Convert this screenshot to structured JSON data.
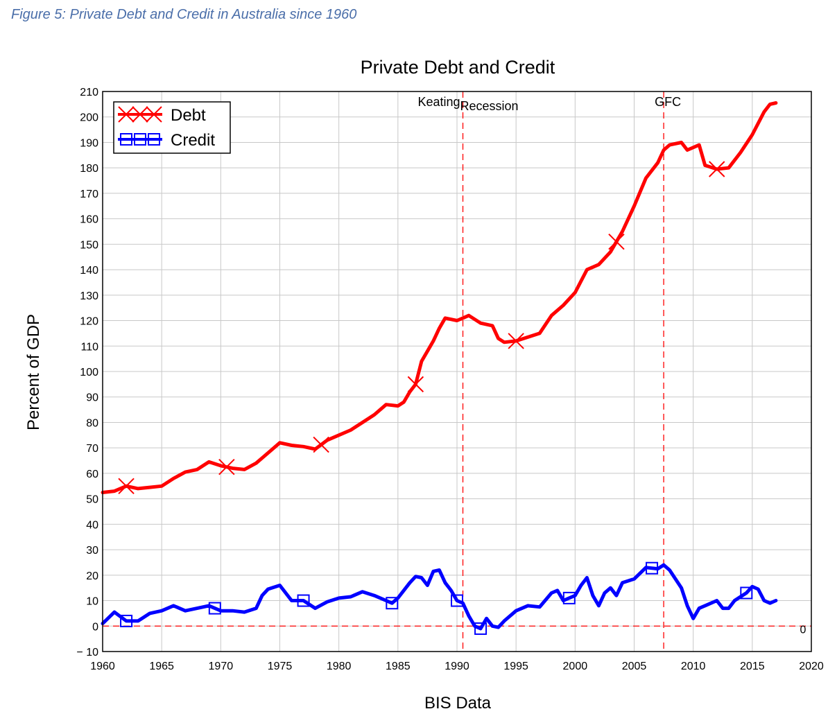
{
  "figure_caption": "Figure 5: Private Debt and Credit in Australia since 1960",
  "chart_data": {
    "type": "line",
    "title": "Private Debt and Credit",
    "xlabel": "BIS Data",
    "ylabel": "Percent of GDP",
    "xlim": [
      1960,
      2020
    ],
    "ylim": [
      -10,
      210
    ],
    "x_ticks": [
      1960,
      1965,
      1970,
      1975,
      1980,
      1985,
      1990,
      1995,
      2000,
      2005,
      2010,
      2015,
      2020
    ],
    "y_ticks": [
      -10,
      0,
      10,
      20,
      30,
      40,
      50,
      60,
      70,
      80,
      90,
      100,
      110,
      120,
      130,
      140,
      150,
      160,
      170,
      180,
      190,
      200,
      210
    ],
    "y_tick_labels": [
      "− 10",
      "0",
      "10",
      "20",
      "30",
      "40",
      "50",
      "60",
      "70",
      "80",
      "90",
      "100",
      "110",
      "120",
      "130",
      "140",
      "150",
      "160",
      "170",
      "180",
      "190",
      "200",
      "210"
    ],
    "grid": true,
    "legend_position": "top-left",
    "series": [
      {
        "name": "Debt",
        "color": "#ff0000",
        "marker": "x",
        "markers_at": [
          1962,
          1970.5,
          1978.5,
          1986.5,
          1995,
          2003.5,
          2012
        ],
        "points": [
          [
            1960,
            52.5
          ],
          [
            1961,
            53
          ],
          [
            1962,
            55
          ],
          [
            1963,
            54
          ],
          [
            1964,
            54.5
          ],
          [
            1965,
            55
          ],
          [
            1966,
            58
          ],
          [
            1967,
            60.5
          ],
          [
            1968,
            61.5
          ],
          [
            1969,
            64.5
          ],
          [
            1970,
            63
          ],
          [
            1971,
            62
          ],
          [
            1972,
            61.5
          ],
          [
            1973,
            64
          ],
          [
            1974,
            68
          ],
          [
            1975,
            72
          ],
          [
            1976,
            71
          ],
          [
            1977,
            70.5
          ],
          [
            1978,
            69.5
          ],
          [
            1979,
            73
          ],
          [
            1980,
            75
          ],
          [
            1981,
            77
          ],
          [
            1982,
            80
          ],
          [
            1983,
            83
          ],
          [
            1984,
            87
          ],
          [
            1985,
            86.5
          ],
          [
            1985.5,
            88
          ],
          [
            1986,
            92
          ],
          [
            1986.5,
            95
          ],
          [
            1987,
            104
          ],
          [
            1987.5,
            108
          ],
          [
            1988,
            112
          ],
          [
            1988.5,
            117
          ],
          [
            1989,
            121
          ],
          [
            1990,
            120
          ],
          [
            1990.5,
            121
          ],
          [
            1991,
            122
          ],
          [
            1992,
            119
          ],
          [
            1993,
            118
          ],
          [
            1993.5,
            113
          ],
          [
            1994,
            111.5
          ],
          [
            1995,
            112
          ],
          [
            1996,
            113.5
          ],
          [
            1997,
            115
          ],
          [
            1998,
            122
          ],
          [
            1999,
            126
          ],
          [
            2000,
            131
          ],
          [
            2001,
            140
          ],
          [
            2002,
            142
          ],
          [
            2003,
            147
          ],
          [
            2004,
            155
          ],
          [
            2005,
            165
          ],
          [
            2006,
            176
          ],
          [
            2007,
            182
          ],
          [
            2007.5,
            187
          ],
          [
            2008,
            189
          ],
          [
            2009,
            190
          ],
          [
            2009.5,
            187
          ],
          [
            2010.5,
            189
          ],
          [
            2011,
            181
          ],
          [
            2012,
            179.5
          ],
          [
            2013,
            180
          ],
          [
            2014,
            186
          ],
          [
            2015,
            193
          ],
          [
            2016,
            202
          ],
          [
            2016.5,
            205
          ],
          [
            2017,
            205.5
          ]
        ]
      },
      {
        "name": "Credit",
        "color": "#0000ff",
        "marker": "square",
        "markers_at": [
          1962,
          1969.5,
          1977,
          1984.5,
          1990,
          1992,
          1999.5,
          2006.5,
          2014.5
        ],
        "points": [
          [
            1960,
            1
          ],
          [
            1961,
            5.5
          ],
          [
            1962,
            2
          ],
          [
            1963,
            2
          ],
          [
            1964,
            5
          ],
          [
            1965,
            6
          ],
          [
            1966,
            8
          ],
          [
            1967,
            6
          ],
          [
            1968,
            7
          ],
          [
            1969,
            8
          ],
          [
            1970,
            6
          ],
          [
            1971,
            6
          ],
          [
            1972,
            5.5
          ],
          [
            1973,
            7
          ],
          [
            1973.5,
            12
          ],
          [
            1974,
            14.5
          ],
          [
            1975,
            16
          ],
          [
            1976,
            10
          ],
          [
            1977,
            10
          ],
          [
            1978,
            7
          ],
          [
            1979,
            9.5
          ],
          [
            1980,
            11
          ],
          [
            1981,
            11.5
          ],
          [
            1982,
            13.5
          ],
          [
            1983,
            12
          ],
          [
            1984,
            10
          ],
          [
            1984.5,
            9
          ],
          [
            1985,
            11
          ],
          [
            1986,
            17
          ],
          [
            1986.5,
            19.5
          ],
          [
            1987,
            19
          ],
          [
            1987.5,
            16
          ],
          [
            1988,
            21.5
          ],
          [
            1988.5,
            22
          ],
          [
            1989,
            17
          ],
          [
            1989.5,
            14
          ],
          [
            1990,
            10
          ],
          [
            1990.5,
            9
          ],
          [
            1991,
            4
          ],
          [
            1991.5,
            0
          ],
          [
            1992,
            -1
          ],
          [
            1992.5,
            3
          ],
          [
            1993,
            0
          ],
          [
            1993.5,
            -0.5
          ],
          [
            1994,
            2
          ],
          [
            1995,
            6
          ],
          [
            1996,
            8
          ],
          [
            1997,
            7.5
          ],
          [
            1998,
            13
          ],
          [
            1998.5,
            14
          ],
          [
            1999,
            10
          ],
          [
            2000,
            12
          ],
          [
            2000.5,
            16
          ],
          [
            2001,
            19
          ],
          [
            2001.5,
            12
          ],
          [
            2002,
            8
          ],
          [
            2002.5,
            13
          ],
          [
            2003,
            15
          ],
          [
            2003.5,
            12
          ],
          [
            2004,
            17
          ],
          [
            2005,
            18.5
          ],
          [
            2006,
            23
          ],
          [
            2007,
            22.5
          ],
          [
            2007.5,
            24
          ],
          [
            2008,
            22
          ],
          [
            2009,
            15
          ],
          [
            2009.5,
            8
          ],
          [
            2010,
            3
          ],
          [
            2010.5,
            7
          ],
          [
            2011,
            8
          ],
          [
            2012,
            10
          ],
          [
            2012.5,
            7
          ],
          [
            2013,
            7
          ],
          [
            2013.5,
            10
          ],
          [
            2014.5,
            13
          ],
          [
            2015,
            15.5
          ],
          [
            2015.5,
            14.5
          ],
          [
            2016,
            10
          ],
          [
            2016.5,
            9
          ],
          [
            2017,
            10
          ]
        ]
      }
    ],
    "reference_lines": [
      {
        "axis": "y",
        "value": 0,
        "label": "0",
        "color": "#ff0000",
        "style": "dashed"
      },
      {
        "axis": "x",
        "value": 1990.5,
        "labels": [
          "Keating",
          "Recession"
        ],
        "color": "#ff0000",
        "style": "dashed"
      },
      {
        "axis": "x",
        "value": 2007.5,
        "labels": [
          "GFC"
        ],
        "color": "#ff0000",
        "style": "dashed"
      }
    ]
  }
}
